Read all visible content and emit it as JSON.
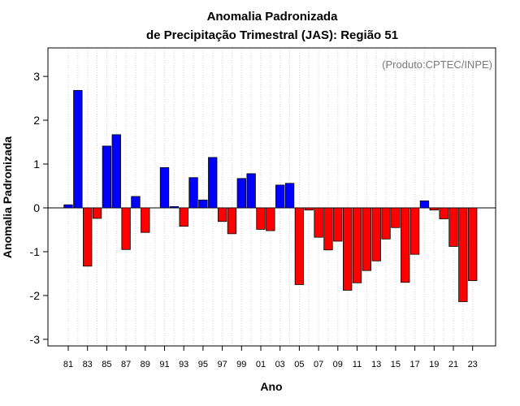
{
  "chart_data": {
    "type": "bar",
    "title_line1": "Anomalia Padronizada",
    "title_line2": "de Precipitação Trimestral (JAS): Região 51",
    "xlabel": "Ano",
    "ylabel": "Anomalia Padronizada",
    "credit": "(Produto:CPTEC/INPE)",
    "ylim": [
      -3.15,
      3.65
    ],
    "yticks": [
      -3,
      -2,
      -1,
      0,
      1,
      2,
      3
    ],
    "xtick_labels": [
      "81",
      "83",
      "85",
      "87",
      "89",
      "91",
      "93",
      "95",
      "97",
      "99",
      "01",
      "03",
      "05",
      "07",
      "09",
      "11",
      "13",
      "15",
      "17",
      "19",
      "21",
      "23"
    ],
    "categories": [
      "1981",
      "1982",
      "1983",
      "1984",
      "1985",
      "1986",
      "1987",
      "1988",
      "1989",
      "1990",
      "1991",
      "1992",
      "1993",
      "1994",
      "1995",
      "1996",
      "1997",
      "1998",
      "1999",
      "2000",
      "2001",
      "2002",
      "2003",
      "2004",
      "2005",
      "2006",
      "2007",
      "2008",
      "2009",
      "2010",
      "2011",
      "2012",
      "2013",
      "2014",
      "2015",
      "2016",
      "2017",
      "2018",
      "2019",
      "2020",
      "2021",
      "2022",
      "2023"
    ],
    "values": [
      0.07,
      2.68,
      -1.33,
      -0.24,
      1.41,
      1.67,
      -0.95,
      0.26,
      -0.56,
      0.0,
      0.92,
      0.03,
      -0.42,
      0.69,
      0.18,
      1.15,
      -0.31,
      -0.59,
      0.67,
      0.78,
      -0.49,
      -0.52,
      0.52,
      0.56,
      -1.75,
      -0.05,
      -0.67,
      -0.96,
      -0.76,
      -1.88,
      -1.71,
      -1.43,
      -1.21,
      -0.71,
      -0.45,
      -1.7,
      -1.06,
      0.16,
      -0.05,
      -0.25,
      -0.88,
      -2.14,
      -1.66
    ],
    "colors": {
      "positive": "#0000ff",
      "negative": "#ff0000",
      "grid": "#d3d3d3"
    }
  }
}
